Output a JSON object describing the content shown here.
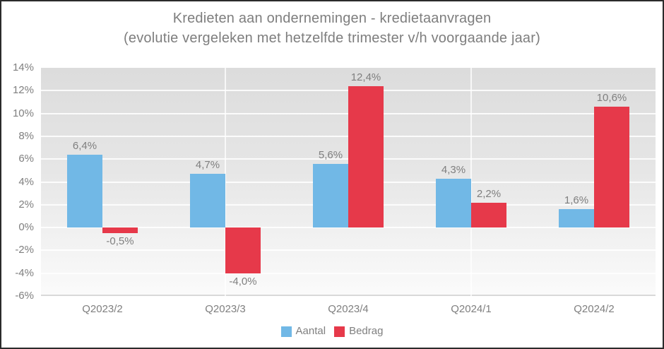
{
  "title": "Kredieten aan ondernemingen - kredietaanvragen",
  "subtitle": "(evolutie vergeleken met hetzelfde trimester v/h voorgaande jaar)",
  "chart_data": {
    "type": "bar",
    "title": "Kredieten aan ondernemingen - kredietaanvragen",
    "subtitle": "(evolutie vergeleken met hetzelfde trimester v/h voorgaande jaar)",
    "categories": [
      "Q2023/2",
      "Q2023/3",
      "Q2023/4",
      "Q2024/1",
      "Q2024/2"
    ],
    "series": [
      {
        "name": "Aantal",
        "color": "#71B8E6",
        "values": [
          6.4,
          4.7,
          5.6,
          4.3,
          1.6
        ],
        "labels": [
          "6,4%",
          "4,7%",
          "5,6%",
          "4,3%",
          "1,6%"
        ]
      },
      {
        "name": "Bedrag",
        "color": "#E6394A",
        "values": [
          -0.5,
          -4.0,
          12.4,
          2.2,
          10.6
        ],
        "labels": [
          "-0,5%",
          "-4,0%",
          "12,4%",
          "2,2%",
          "10,6%"
        ]
      }
    ],
    "xlabel": "",
    "ylabel": "",
    "ylim": [
      -6,
      14
    ],
    "ytick_step": 2,
    "ytick_suffix": "%",
    "grid": true,
    "x_gridlines_at_categories": [
      "Q2023/3",
      "Q2024/1"
    ],
    "legend_position": "bottom",
    "label_color": "#7f7f7f",
    "axis_line_color": "#d8d8d8"
  }
}
